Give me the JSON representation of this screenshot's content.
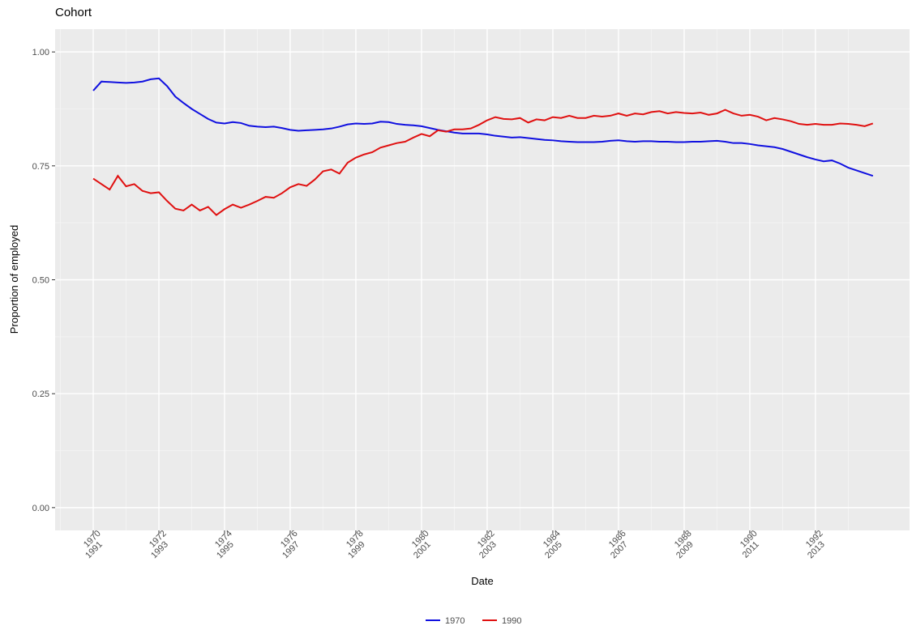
{
  "chart_data": {
    "type": "line",
    "title": "Cohort",
    "x_label": "Date",
    "y_label": "Proportion of employed",
    "x": [
      0,
      3,
      6,
      9,
      12,
      15,
      18,
      21,
      24,
      27,
      30,
      33,
      36,
      39,
      42,
      45,
      48,
      51,
      54,
      57,
      60,
      63,
      66,
      69,
      72,
      75,
      78,
      81,
      84,
      87,
      90,
      93,
      96,
      99,
      102,
      105,
      108,
      111,
      114,
      117,
      120,
      123,
      126,
      129,
      132,
      135,
      138,
      141,
      144,
      147,
      150,
      153,
      156,
      159,
      162,
      165,
      168,
      171,
      174,
      177,
      180,
      183,
      186,
      189,
      192,
      195,
      198,
      201,
      204,
      207,
      210,
      213,
      216,
      219,
      222,
      225,
      228,
      231,
      234,
      237,
      240,
      243,
      246,
      249,
      252,
      255,
      258,
      261,
      264,
      267,
      270,
      273,
      276,
      279,
      282,
      285
    ],
    "series": [
      {
        "name": "1970",
        "color": "#1010e0",
        "values": [
          0.915,
          0.935,
          0.934,
          0.933,
          0.932,
          0.933,
          0.935,
          0.94,
          0.942,
          0.925,
          0.902,
          0.888,
          0.875,
          0.864,
          0.853,
          0.845,
          0.843,
          0.846,
          0.844,
          0.838,
          0.836,
          0.835,
          0.836,
          0.833,
          0.829,
          0.827,
          0.828,
          0.829,
          0.83,
          0.832,
          0.836,
          0.841,
          0.843,
          0.842,
          0.843,
          0.847,
          0.846,
          0.842,
          0.84,
          0.839,
          0.837,
          0.833,
          0.829,
          0.826,
          0.823,
          0.821,
          0.821,
          0.821,
          0.819,
          0.816,
          0.814,
          0.812,
          0.813,
          0.811,
          0.809,
          0.807,
          0.806,
          0.804,
          0.803,
          0.802,
          0.802,
          0.802,
          0.803,
          0.805,
          0.806,
          0.804,
          0.803,
          0.804,
          0.804,
          0.803,
          0.803,
          0.802,
          0.802,
          0.803,
          0.803,
          0.804,
          0.805,
          0.803,
          0.8,
          0.8,
          0.798,
          0.795,
          0.793,
          0.791,
          0.787,
          0.781,
          0.775,
          0.769,
          0.764,
          0.76,
          0.762,
          0.755,
          0.746,
          0.74,
          0.734,
          0.728
        ]
      },
      {
        "name": "1990",
        "color": "#e01010",
        "values": [
          0.722,
          0.71,
          0.698,
          0.728,
          0.705,
          0.71,
          0.695,
          0.69,
          0.692,
          0.673,
          0.656,
          0.652,
          0.665,
          0.652,
          0.66,
          0.642,
          0.655,
          0.665,
          0.658,
          0.665,
          0.673,
          0.682,
          0.68,
          0.69,
          0.703,
          0.71,
          0.706,
          0.72,
          0.738,
          0.742,
          0.733,
          0.757,
          0.768,
          0.775,
          0.78,
          0.79,
          0.795,
          0.8,
          0.803,
          0.812,
          0.82,
          0.815,
          0.828,
          0.825,
          0.83,
          0.83,
          0.832,
          0.84,
          0.85,
          0.857,
          0.853,
          0.852,
          0.855,
          0.845,
          0.852,
          0.85,
          0.857,
          0.855,
          0.86,
          0.855,
          0.855,
          0.86,
          0.858,
          0.86,
          0.865,
          0.86,
          0.865,
          0.863,
          0.868,
          0.87,
          0.865,
          0.868,
          0.866,
          0.865,
          0.867,
          0.862,
          0.865,
          0.873,
          0.865,
          0.86,
          0.862,
          0.858,
          0.85,
          0.855,
          0.852,
          0.848,
          0.842,
          0.84,
          0.842,
          0.84,
          0.84,
          0.843,
          0.842,
          0.84,
          0.837,
          0.843
        ]
      }
    ],
    "xlim": [
      -13.93,
      298.4
    ],
    "xticks": [
      {
        "value": 0,
        "label": "1970\n1991"
      },
      {
        "value": 24,
        "label": "1972\n1993"
      },
      {
        "value": 48,
        "label": "1974\n1995"
      },
      {
        "value": 72,
        "label": "1976\n1997"
      },
      {
        "value": 96,
        "label": "1978\n1999"
      },
      {
        "value": 120,
        "label": "1980\n2001"
      },
      {
        "value": 144,
        "label": "1982\n2003"
      },
      {
        "value": 168,
        "label": "1984\n2005"
      },
      {
        "value": 192,
        "label": "1986\n2007"
      },
      {
        "value": 216,
        "label": "1988\n2009"
      },
      {
        "value": 240,
        "label": "1990\n2011"
      },
      {
        "value": 264,
        "label": "1992\n2013"
      }
    ],
    "ylim": [
      -0.05,
      1.05
    ],
    "yticks": [
      {
        "value": 0,
        "label": "0.00"
      },
      {
        "value": 0.25,
        "label": "0.25"
      },
      {
        "value": 0.5,
        "label": "0.50"
      },
      {
        "value": 0.75,
        "label": "0.75"
      },
      {
        "value": 1,
        "label": "1.00"
      }
    ],
    "grid": true,
    "legend": "bottom"
  }
}
